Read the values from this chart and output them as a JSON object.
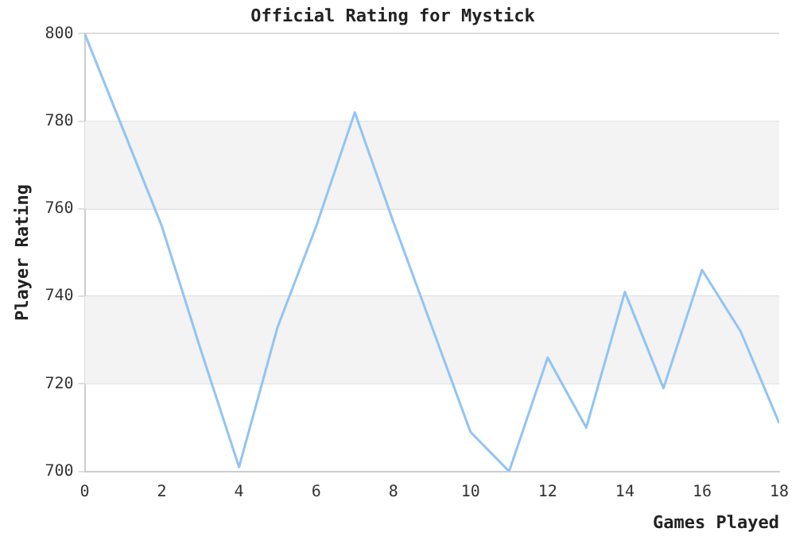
{
  "chart_data": {
    "type": "line",
    "title": "Official Rating for Mystick",
    "xlabel": "Games Played",
    "ylabel": "Player Rating",
    "x": [
      0,
      1,
      2,
      3,
      4,
      5,
      6,
      7,
      8,
      9,
      10,
      11,
      12,
      13,
      14,
      15,
      16,
      17,
      18
    ],
    "series": [
      {
        "color": "#90c4f4",
        "values": [
          800,
          778,
          756,
          728,
          701,
          733,
          756,
          782,
          757,
          733,
          709,
          700,
          726,
          710,
          741,
          719,
          746,
          732,
          711
        ]
      }
    ],
    "xlim": [
      0,
      18
    ],
    "xticks": [
      0,
      2,
      4,
      6,
      8,
      10,
      12,
      14,
      16,
      18
    ],
    "ylim": [
      700,
      800
    ],
    "yticks": [
      700,
      720,
      740,
      760,
      780,
      800
    ],
    "bands": [
      {
        "axis": "y",
        "from": 720,
        "to": 740,
        "color": "#f3f3f3"
      },
      {
        "axis": "y",
        "from": 760,
        "to": 780,
        "color": "#f3f3f3"
      }
    ],
    "grid": "y",
    "legend": false,
    "marker": "none",
    "line_style": "solid"
  }
}
